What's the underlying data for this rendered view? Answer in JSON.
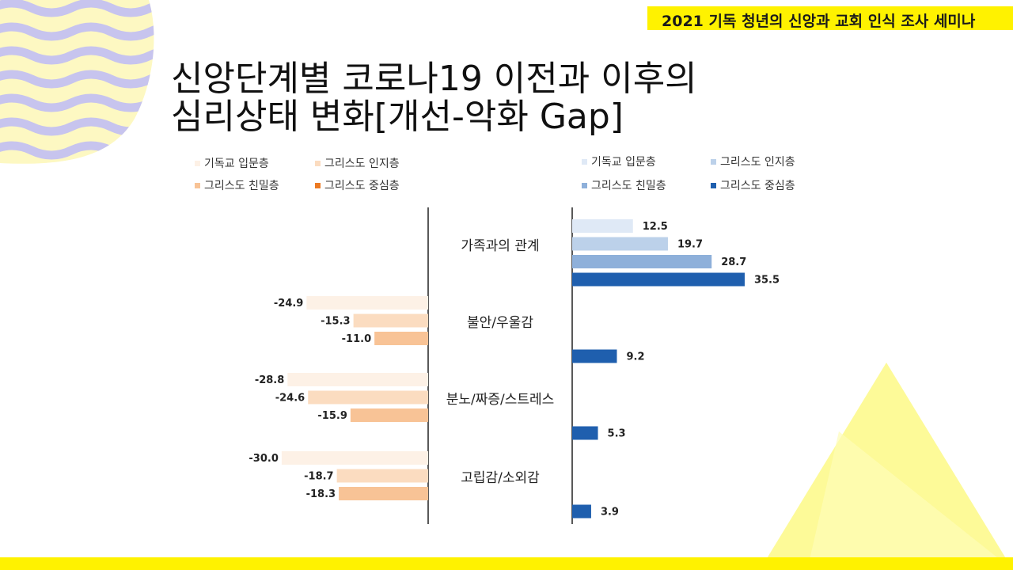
{
  "header": {
    "badge": "2021 기독 청년의 신앙과 교회 인식 조사 세미나"
  },
  "title": {
    "line1": "신앙단계별 코로나19 이전과 이후의",
    "line2": "심리상태 변화[개선-악화 Gap]"
  },
  "colors": {
    "badge": "#fff200",
    "left_series": [
      "#fdf1e6",
      "#fbdcc0",
      "#f8c396",
      "#ec7a22"
    ],
    "right_series": [
      "#dfe9f6",
      "#bcd1ea",
      "#8eb0da",
      "#1f5fae"
    ]
  },
  "chart_data": {
    "type": "bar",
    "orientation": "horizontal",
    "title": "신앙단계별 코로나19 이전과 이후의 심리상태 변화[개선-악화 Gap]",
    "categories": [
      "가족과의 관계",
      "불안/우울감",
      "분노/짜증/스트레스",
      "고립감/소외감"
    ],
    "series": [
      {
        "name": "기독교 입문층",
        "values": [
          12.5,
          -24.9,
          -28.8,
          -30.0
        ]
      },
      {
        "name": "그리스도 인지층",
        "values": [
          19.7,
          -15.3,
          -24.6,
          -18.7
        ]
      },
      {
        "name": "그리스도 친밀층",
        "values": [
          28.7,
          -11.0,
          -15.9,
          -18.3
        ]
      },
      {
        "name": "그리스도 중심층",
        "values": [
          35.5,
          9.2,
          5.3,
          3.9
        ]
      }
    ],
    "labels": [
      [
        "12.5",
        "-24.9",
        "-28.8",
        "-30.0"
      ],
      [
        "19.7",
        "-15.3",
        "-24.6",
        "-18.7"
      ],
      [
        "28.7",
        "-11.0",
        "-15.9",
        "-18.3"
      ],
      [
        "35.5",
        "9.2",
        "5.3",
        "3.9"
      ]
    ],
    "legend_left": [
      "기독교 입문층",
      "그리스도 인지층",
      "그리스도 친밀층",
      "그리스도 중심층"
    ],
    "legend_right": [
      "기독교 입문층",
      "그리스도 인지층",
      "그리스도 친밀층",
      "그리스도 중심층"
    ]
  }
}
